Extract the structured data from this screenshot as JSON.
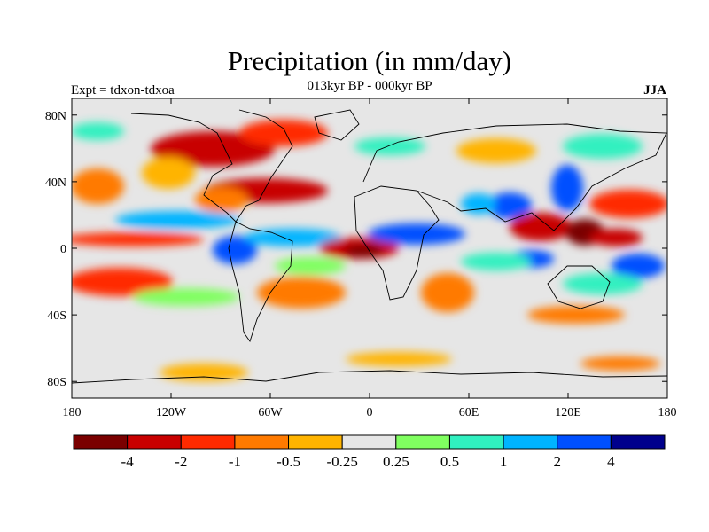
{
  "header": {
    "title": "Precipitation (in mm/day)",
    "subtitle": "013kyr BP - 000kyr BP",
    "left_label": "Expt = tdxon-tdxoa",
    "right_label": "JJA"
  },
  "map": {
    "lon_range": [
      -180,
      180
    ],
    "lat_range": [
      -90,
      90
    ],
    "background_color": "#e6e6e6",
    "x_ticks": [
      {
        "value": -180,
        "label": "180"
      },
      {
        "value": -120,
        "label": "120W"
      },
      {
        "value": -60,
        "label": "60W"
      },
      {
        "value": 0,
        "label": "0"
      },
      {
        "value": 60,
        "label": "60E"
      },
      {
        "value": 120,
        "label": "120E"
      },
      {
        "value": 180,
        "label": "180"
      }
    ],
    "y_ticks": [
      {
        "value": 80,
        "label": "80N"
      },
      {
        "value": 40,
        "label": "40N"
      },
      {
        "value": 0,
        "label": "0"
      },
      {
        "value": -40,
        "label": "40S"
      },
      {
        "value": -80,
        "label": "80S"
      }
    ]
  },
  "colorbar": {
    "colors": [
      "#7a0000",
      "#c80000",
      "#ff2a00",
      "#ff7a00",
      "#ffb400",
      "#e6e6e6",
      "#80ff60",
      "#30f0c0",
      "#00b4ff",
      "#0050ff",
      "#00008c"
    ],
    "labels": [
      "-4",
      "-2",
      "-1",
      "-0.5",
      "-0.25",
      "0.25",
      "0.5",
      "1",
      "2",
      "4"
    ]
  },
  "chart_data": {
    "type": "heatmap",
    "title": "Precipitation (in mm/day)",
    "subtitle": "013kyr BP - 000kyr BP",
    "xlim": [
      -180,
      180
    ],
    "ylim": [
      -90,
      90
    ],
    "levels": [
      -4,
      -2,
      -1,
      -0.5,
      -0.25,
      0.25,
      0.5,
      1,
      2,
      4
    ],
    "features": [
      {
        "lon": -160,
        "lat": 6,
        "value": -2
      },
      {
        "lon": -130,
        "lat": 8,
        "value": -1
      },
      {
        "lon": -100,
        "lat": 12,
        "value": 1
      },
      {
        "lon": -82,
        "lat": 3,
        "value": 2
      },
      {
        "lon": -60,
        "lat": 8,
        "value": 1
      },
      {
        "lon": -35,
        "lat": 2,
        "value": -4
      },
      {
        "lon": -20,
        "lat": 5,
        "value": -2
      },
      {
        "lon": -10,
        "lat": 8,
        "value": 2
      },
      {
        "lon": 20,
        "lat": 10,
        "value": 2
      },
      {
        "lon": 40,
        "lat": 12,
        "value": 1
      },
      {
        "lon": -110,
        "lat": 62,
        "value": -2
      },
      {
        "lon": -70,
        "lat": 60,
        "value": -1
      },
      {
        "lon": -50,
        "lat": 35,
        "value": -2
      },
      {
        "lon": -80,
        "lat": 35,
        "value": -1
      },
      {
        "lon": 80,
        "lat": 22,
        "value": 2
      },
      {
        "lon": 105,
        "lat": 12,
        "value": -4
      },
      {
        "lon": 130,
        "lat": 20,
        "value": -2
      },
      {
        "lon": 125,
        "lat": 40,
        "value": 2
      },
      {
        "lon": 150,
        "lat": 12,
        "value": -4
      },
      {
        "lon": 160,
        "lat": -5,
        "value": 2
      },
      {
        "lon": 100,
        "lat": -5,
        "value": 2
      },
      {
        "lon": 30,
        "lat": -25,
        "value": -1
      },
      {
        "lon": -170,
        "lat": -15,
        "value": -2
      },
      {
        "lon": -110,
        "lat": -30,
        "value": 0.5
      },
      {
        "lon": 90,
        "lat": -45,
        "value": -0.5
      },
      {
        "lon": -40,
        "lat": -70,
        "value": -0.5
      },
      {
        "lon": 150,
        "lat": -70,
        "value": -0.5
      }
    ]
  }
}
